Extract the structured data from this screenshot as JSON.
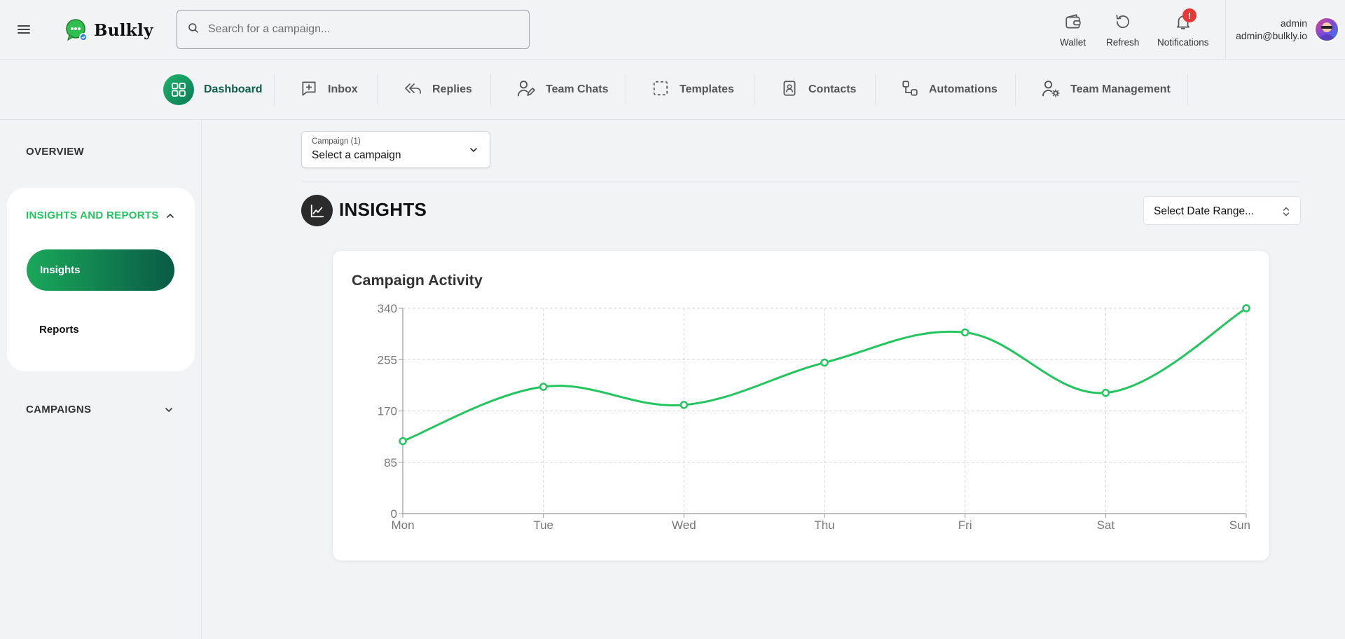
{
  "app": {
    "brand": "Bulkly",
    "search_placeholder": "Search for a campaign..."
  },
  "header": {
    "wallet_label": "Wallet",
    "refresh_label": "Refresh",
    "notifications_label": "Notifications",
    "notifications_badge": "!",
    "user_name": "admin",
    "user_email": "admin@bulkly.io"
  },
  "nav": {
    "items": [
      {
        "label": "Dashboard",
        "icon": "dashboard-icon",
        "active": true
      },
      {
        "label": "Inbox",
        "icon": "inbox-icon"
      },
      {
        "label": "Replies",
        "icon": "reply-all-icon"
      },
      {
        "label": "Team Chats",
        "icon": "user-edit-icon"
      },
      {
        "label": "Templates",
        "icon": "template-icon"
      },
      {
        "label": "Contacts",
        "icon": "contact-book-icon"
      },
      {
        "label": "Automations",
        "icon": "automation-icon"
      },
      {
        "label": "Team Management",
        "icon": "user-gear-icon"
      }
    ]
  },
  "sidebar": {
    "overview": "OVERVIEW",
    "insights_reports": "INSIGHTS AND REPORTS",
    "insights": "Insights",
    "reports": "Reports",
    "campaigns": "CAMPAIGNS"
  },
  "main": {
    "campaign_select_label": "Campaign (1)",
    "campaign_select_value": "Select a campaign",
    "section_title": "INSIGHTS",
    "date_range": "Select Date Range..."
  },
  "colors": {
    "accent": "#22c55e",
    "dark_green": "#0b5e47",
    "badge": "#e53935"
  },
  "chart_data": {
    "type": "line",
    "title": "Campaign Activity",
    "categories": [
      "Mon",
      "Tue",
      "Wed",
      "Thu",
      "Fri",
      "Sat",
      "Sun"
    ],
    "series": [
      {
        "values": [
          120,
          210,
          180,
          250,
          300,
          200,
          340
        ]
      }
    ],
    "ylim": [
      0,
      340
    ],
    "yticks": [
      0,
      85,
      170,
      255,
      340
    ],
    "grid": true,
    "legend": "none",
    "line_color": "#22c55e"
  }
}
